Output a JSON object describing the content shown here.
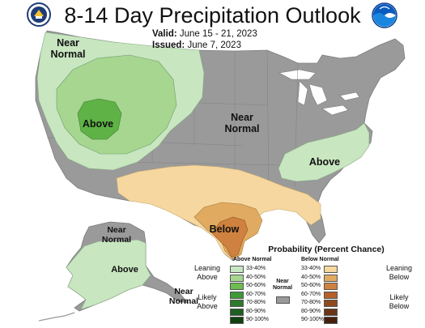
{
  "header": {
    "title": "8-14 Day Precipitation Outlook",
    "valid_label": "Valid:",
    "valid_value": "June 15 - 21, 2023",
    "issued_label": "Issued:",
    "issued_value": "June 7, 2023"
  },
  "logos": {
    "left": "noaa-commerce-seal-icon",
    "right": "noaa-logo-icon"
  },
  "map_labels": {
    "nw_near_normal": [
      "Near",
      "Normal"
    ],
    "west_above": "Above",
    "central_near_normal": [
      "Near",
      "Normal"
    ],
    "east_above": "Above",
    "south_below": "Below",
    "alaska_near_normal": [
      "Near",
      "Normal"
    ],
    "alaska_above": "Above",
    "se_alaska_near_normal": [
      "Near",
      "Normal"
    ]
  },
  "colors": {
    "land_gray": "#9a9a9a",
    "water": "#ffffff",
    "above": [
      "#c8e6c0",
      "#a6d68f",
      "#6cbc4f",
      "#3d9a35",
      "#2c7a2b",
      "#1f5e22",
      "#10420f"
    ],
    "below": [
      "#f5d79f",
      "#e0ab60",
      "#cf8240",
      "#b55f2a",
      "#8e4a1e",
      "#6a3417",
      "#45200f"
    ],
    "near_normal": "#9a9a9a"
  },
  "legend": {
    "title": "Probability (Percent Chance)",
    "above_header": "Above Normal",
    "below_header": "Below Normal",
    "above_ranges": [
      "33-40%",
      "40-50%",
      "50-60%",
      "60-70%",
      "70-80%",
      "80-90%",
      "90-100%"
    ],
    "below_ranges": [
      "33-40%",
      "40-50%",
      "50-60%",
      "60-70%",
      "70-80%",
      "80-90%",
      "90-100%"
    ],
    "leaning_above": [
      "Leaning",
      "Above"
    ],
    "likely_above": [
      "Likely",
      "Above"
    ],
    "leaning_below": [
      "Leaning",
      "Below"
    ],
    "likely_below": [
      "Likely",
      "Below"
    ],
    "near_normal": [
      "Near",
      "Normal"
    ]
  }
}
